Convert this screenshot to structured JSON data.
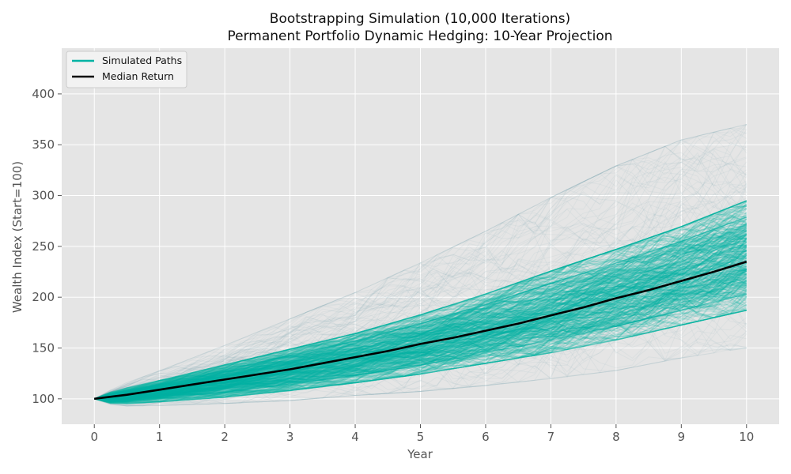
{
  "chart_data": {
    "type": "line",
    "title": [
      "Bootstrapping Simulation (10,000 Iterations)",
      "Permanent Portfolio Dynamic Hedging: 10-Year Projection"
    ],
    "xlabel": "Year",
    "ylabel": "Wealth Index (Start=100)",
    "xlim": [
      -0.5,
      10.5
    ],
    "ylim": [
      75,
      445
    ],
    "xticks": [
      0,
      1,
      2,
      3,
      4,
      5,
      6,
      7,
      8,
      9,
      10
    ],
    "yticks": [
      100,
      150,
      200,
      250,
      300,
      350,
      400
    ],
    "grid": true,
    "legend_position": "top-left",
    "series": [
      {
        "name": "Simulated Paths",
        "color": "#00b3a4",
        "kind": "band",
        "x": [
          0,
          0.25,
          0.5,
          1,
          2,
          3,
          4,
          5,
          6,
          7,
          8,
          9,
          10
        ],
        "p_low": [
          100,
          96,
          96,
          98,
          103,
          110,
          118,
          127,
          138,
          149,
          162,
          177,
          192
        ],
        "p_high": [
          100,
          106,
          110,
          117,
          132,
          147,
          162,
          180,
          200,
          222,
          243,
          265,
          290
        ],
        "max": [
          100,
          108,
          115,
          126,
          150,
          175,
          200,
          228,
          258,
          290,
          320,
          345,
          360
        ],
        "min": [
          100,
          95,
          94,
          95,
          98,
          102,
          108,
          113,
          120,
          128,
          137,
          150,
          160
        ]
      },
      {
        "name": "Median Return",
        "color": "#000000",
        "kind": "line",
        "x": [
          0,
          0.5,
          1,
          1.5,
          2,
          2.5,
          3,
          3.5,
          4,
          4.5,
          5,
          5.5,
          6,
          6.5,
          7,
          7.5,
          8,
          8.5,
          9,
          9.5,
          10
        ],
        "values": [
          100,
          104,
          109,
          114,
          119,
          124,
          129,
          135,
          141,
          147,
          154,
          160,
          167,
          174,
          182,
          190,
          199,
          207,
          216,
          225,
          235
        ]
      }
    ]
  }
}
